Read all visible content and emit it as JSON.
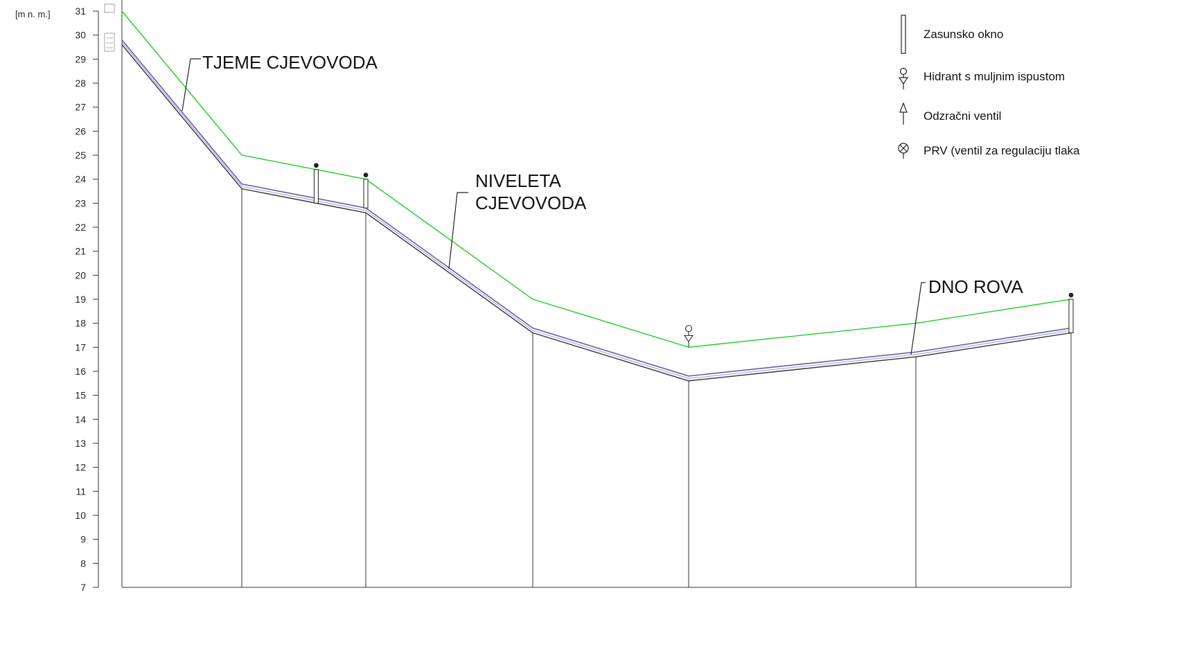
{
  "axis": {
    "unit_label": "[m n. m.]",
    "ymin": 7,
    "ymax": 31,
    "ticks": [
      7,
      8,
      9,
      10,
      11,
      12,
      13,
      14,
      15,
      16,
      17,
      18,
      19,
      20,
      21,
      22,
      23,
      24,
      25,
      26,
      27,
      28,
      29,
      30,
      31
    ]
  },
  "profile": {
    "stations": [
      0,
      1,
      2,
      3,
      4,
      5,
      6
    ],
    "tjeme_cjevovoda": [
      31.0,
      25.0,
      24.0,
      19.0,
      17.0,
      18.0,
      19.0
    ],
    "niveleta_cjevovoda": [
      29.8,
      23.8,
      22.8,
      17.8,
      15.8,
      16.8,
      17.8
    ],
    "dno_rova": [
      29.6,
      23.6,
      22.6,
      17.6,
      15.6,
      16.6,
      17.6
    ],
    "valves_on_tjeme_segment": [
      {
        "type": "zasunsko-okno",
        "station": 1.6,
        "top": 24.4,
        "bottom": 23.0
      },
      {
        "type": "zasunsko-okno",
        "station": 2.0,
        "top": 24.0,
        "bottom": 22.8
      },
      {
        "type": "hidrant",
        "station": 4.0,
        "top": 17.0,
        "bottom": 17.0
      },
      {
        "type": "zasunsko-okno",
        "station": 6.0,
        "top": 19.0,
        "bottom": 17.6
      }
    ]
  },
  "callouts": {
    "tjeme": "TJEME CJEVOVODA",
    "niveleta_line1": "NIVELETA",
    "niveleta_line2": "CJEVOVODA",
    "dno": "DNO ROVA"
  },
  "legend": {
    "items": [
      {
        "icon": "zasunsko-okno-icon",
        "label": "Zasunsko okno"
      },
      {
        "icon": "hidrant-icon",
        "label": "Hidrant s muljnim ispustom"
      },
      {
        "icon": "odzracni-ventil-icon",
        "label": "Odzračni ventil"
      },
      {
        "icon": "prv-icon",
        "label": "PRV (ventil za regulaciju tlaka"
      }
    ]
  },
  "colors": {
    "tjeme": "#22cc22",
    "niveleta": "#6060a8",
    "dno": "#333333",
    "axis": "#333333"
  }
}
